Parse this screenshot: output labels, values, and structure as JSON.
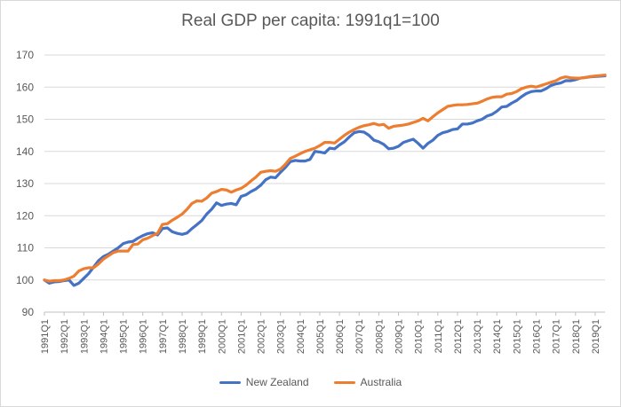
{
  "colors": {
    "nz": "#4472C4",
    "au": "#ED7D31",
    "grid": "#d9d9d9",
    "axis": "#bfbfbf",
    "text": "#595959"
  },
  "chart_data": {
    "type": "line",
    "title": "Real GDP per capita: 1991q1=100",
    "xlabel": "",
    "ylabel": "",
    "ylim": [
      90,
      170
    ],
    "yticks": [
      90,
      100,
      110,
      120,
      130,
      140,
      150,
      160,
      170
    ],
    "grid": true,
    "legend_position": "bottom",
    "x_tick_labels": [
      "1991Q1",
      "1992Q1",
      "1993Q1",
      "1994Q1",
      "1995Q1",
      "1996Q1",
      "1997Q1",
      "1998Q1",
      "1999Q1",
      "2000Q1",
      "2001Q1",
      "2002Q1",
      "2003Q1",
      "2004Q1",
      "2005Q1",
      "2006Q1",
      "2007Q1",
      "2008Q1",
      "2009Q1",
      "2010Q1",
      "2011Q1",
      "2012Q1",
      "2013Q1",
      "2014Q1",
      "2015Q1",
      "2016Q1",
      "2017Q1",
      "2018Q1",
      "2019Q1"
    ],
    "x_start": "1991Q1",
    "x_end": "2019Q3",
    "quarters_count": 115,
    "series": [
      {
        "name": "New Zealand",
        "color": "#4472C4",
        "anchors": [
          [
            0,
            100
          ],
          [
            1,
            99
          ],
          [
            2,
            99.4
          ],
          [
            3,
            99.5
          ],
          [
            4,
            99.8
          ],
          [
            5,
            100
          ],
          [
            6,
            98.3
          ],
          [
            7,
            99
          ],
          [
            8,
            100.5
          ],
          [
            9,
            102
          ],
          [
            10,
            104
          ],
          [
            11,
            106
          ],
          [
            12,
            107.3
          ],
          [
            13,
            108
          ],
          [
            14,
            109
          ],
          [
            15,
            110
          ],
          [
            16,
            111.3
          ],
          [
            17,
            111.8
          ],
          [
            18,
            112
          ],
          [
            19,
            113
          ],
          [
            20,
            113.8
          ],
          [
            21,
            114.4
          ],
          [
            22,
            114.7
          ],
          [
            23,
            114
          ],
          [
            24,
            116
          ],
          [
            25,
            116.2
          ],
          [
            26,
            115
          ],
          [
            27,
            114.5
          ],
          [
            28,
            114.2
          ],
          [
            29,
            114.6
          ],
          [
            30,
            116
          ],
          [
            31,
            117.2
          ],
          [
            32,
            118.5
          ],
          [
            33,
            120.5
          ],
          [
            34,
            122
          ],
          [
            35,
            124
          ],
          [
            36,
            123.2
          ],
          [
            37,
            123.6
          ],
          [
            38,
            123.8
          ],
          [
            39,
            123.4
          ],
          [
            40,
            126
          ],
          [
            41,
            126.5
          ],
          [
            42,
            127.5
          ],
          [
            43,
            128.3
          ],
          [
            44,
            129.5
          ],
          [
            45,
            131.2
          ],
          [
            46,
            132
          ],
          [
            47,
            131.8
          ],
          [
            48,
            133.5
          ],
          [
            49,
            135
          ],
          [
            50,
            136.8
          ],
          [
            51,
            137.2
          ],
          [
            52,
            137
          ],
          [
            53,
            137
          ],
          [
            54,
            137.5
          ],
          [
            55,
            140
          ],
          [
            56,
            139.8
          ],
          [
            57,
            139.5
          ],
          [
            58,
            141
          ],
          [
            59,
            140.8
          ],
          [
            60,
            142
          ],
          [
            61,
            143
          ],
          [
            62,
            144.5
          ],
          [
            63,
            145.8
          ],
          [
            64,
            146.2
          ],
          [
            65,
            146
          ],
          [
            66,
            145
          ],
          [
            67,
            143.5
          ],
          [
            68,
            143
          ],
          [
            69,
            142.2
          ],
          [
            70,
            140.8
          ],
          [
            71,
            141
          ],
          [
            72,
            141.6
          ],
          [
            73,
            142.8
          ],
          [
            74,
            143.3
          ],
          [
            75,
            143.8
          ],
          [
            76,
            142.5
          ],
          [
            77,
            141
          ],
          [
            78,
            142.5
          ],
          [
            79,
            143.5
          ],
          [
            80,
            145
          ],
          [
            81,
            145.8
          ],
          [
            82,
            146.2
          ],
          [
            83,
            146.8
          ],
          [
            84,
            147
          ],
          [
            85,
            148.5
          ],
          [
            86,
            148.5
          ],
          [
            87,
            148.8
          ],
          [
            88,
            149.5
          ],
          [
            89,
            150
          ],
          [
            90,
            151
          ],
          [
            91,
            151.5
          ],
          [
            92,
            152.5
          ],
          [
            93,
            153.8
          ],
          [
            94,
            154
          ],
          [
            95,
            155
          ],
          [
            96,
            155.8
          ],
          [
            97,
            157
          ],
          [
            98,
            158
          ],
          [
            99,
            158.6
          ],
          [
            100,
            158.8
          ],
          [
            101,
            158.8
          ],
          [
            102,
            159.5
          ],
          [
            103,
            160.5
          ],
          [
            104,
            161
          ],
          [
            105,
            161.3
          ],
          [
            106,
            162
          ],
          [
            107,
            162
          ],
          [
            108,
            162.3
          ],
          [
            109,
            162.8
          ],
          [
            110,
            163
          ],
          [
            111,
            163.2
          ]
        ]
      },
      {
        "name": "Australia",
        "color": "#ED7D31",
        "anchors": [
          [
            0,
            100
          ],
          [
            1,
            99.6
          ],
          [
            2,
            99.8
          ],
          [
            3,
            99.8
          ],
          [
            4,
            100
          ],
          [
            5,
            100.5
          ],
          [
            6,
            101.2
          ],
          [
            7,
            102.8
          ],
          [
            8,
            103.5
          ],
          [
            9,
            103.8
          ],
          [
            10,
            103.8
          ],
          [
            11,
            105
          ],
          [
            12,
            106.5
          ],
          [
            13,
            107.5
          ],
          [
            14,
            108.5
          ],
          [
            15,
            109
          ],
          [
            16,
            109
          ],
          [
            17,
            109
          ],
          [
            18,
            111
          ],
          [
            19,
            111.2
          ],
          [
            20,
            112.5
          ],
          [
            21,
            113
          ],
          [
            22,
            113.8
          ],
          [
            23,
            114.5
          ],
          [
            24,
            117.3
          ],
          [
            25,
            117.5
          ],
          [
            26,
            118.6
          ],
          [
            27,
            119.5
          ],
          [
            28,
            120.5
          ],
          [
            29,
            122
          ],
          [
            30,
            123.8
          ],
          [
            31,
            124.6
          ],
          [
            32,
            124.5
          ],
          [
            33,
            125.5
          ],
          [
            34,
            127
          ],
          [
            35,
            127.5
          ],
          [
            36,
            128.2
          ],
          [
            37,
            128
          ],
          [
            38,
            127.3
          ],
          [
            39,
            128
          ],
          [
            40,
            128.5
          ],
          [
            41,
            129.5
          ],
          [
            42,
            130.8
          ],
          [
            43,
            132
          ],
          [
            44,
            133.5
          ],
          [
            45,
            133.8
          ],
          [
            46,
            134
          ],
          [
            47,
            133.8
          ],
          [
            48,
            134.5
          ],
          [
            49,
            136
          ],
          [
            50,
            137.8
          ],
          [
            51,
            138.5
          ],
          [
            52,
            139.3
          ],
          [
            53,
            140
          ],
          [
            54,
            140.5
          ],
          [
            55,
            141
          ],
          [
            56,
            141.8
          ],
          [
            57,
            142.8
          ],
          [
            58,
            142.8
          ],
          [
            59,
            142.6
          ],
          [
            60,
            143.8
          ],
          [
            61,
            145
          ],
          [
            62,
            146
          ],
          [
            63,
            146.8
          ],
          [
            64,
            147.5
          ],
          [
            65,
            148
          ],
          [
            66,
            148.3
          ],
          [
            67,
            148.7
          ],
          [
            68,
            148.2
          ],
          [
            69,
            148.4
          ],
          [
            70,
            147.2
          ],
          [
            71,
            147.8
          ],
          [
            72,
            148
          ],
          [
            73,
            148.2
          ],
          [
            74,
            148.5
          ],
          [
            75,
            149
          ],
          [
            76,
            149.5
          ],
          [
            77,
            150.3
          ],
          [
            78,
            149.5
          ],
          [
            79,
            150.8
          ],
          [
            80,
            152
          ],
          [
            81,
            153
          ],
          [
            82,
            154
          ],
          [
            83,
            154.3
          ],
          [
            84,
            154.5
          ],
          [
            85,
            154.5
          ],
          [
            86,
            154.6
          ],
          [
            87,
            154.8
          ],
          [
            88,
            155
          ],
          [
            89,
            155.6
          ],
          [
            90,
            156.3
          ],
          [
            91,
            156.8
          ],
          [
            92,
            157
          ],
          [
            93,
            157
          ],
          [
            94,
            157.8
          ],
          [
            95,
            158
          ],
          [
            96,
            158.6
          ],
          [
            97,
            159.5
          ],
          [
            98,
            160
          ],
          [
            99,
            160.3
          ],
          [
            100,
            160
          ],
          [
            101,
            160.5
          ],
          [
            102,
            161
          ],
          [
            103,
            161.5
          ],
          [
            104,
            162
          ],
          [
            105,
            162.8
          ],
          [
            106,
            163.2
          ],
          [
            107,
            162.9
          ],
          [
            108,
            162.8
          ],
          [
            109,
            162.8
          ],
          [
            110,
            163
          ],
          [
            111,
            163.3
          ]
        ]
      }
    ]
  }
}
